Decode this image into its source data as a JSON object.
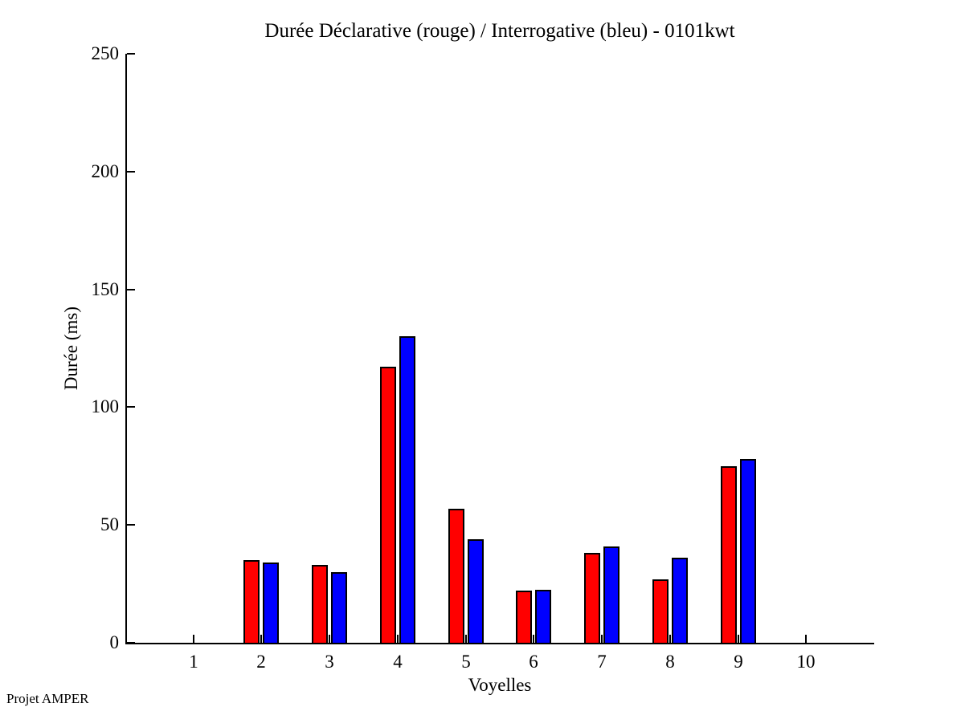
{
  "title": "Durée Déclarative (rouge) / Interrogative (bleu) - 0101kwt",
  "watermark": "Projet AMPER",
  "colors": {
    "background": "#ffffff",
    "axis": "#000000",
    "declarative": "#ff0000",
    "interrogative": "#0000ff",
    "bar_border": "#000000"
  },
  "chart_data": {
    "type": "bar",
    "title": "Durée Déclarative (rouge) / Interrogative (bleu) - 0101kwt",
    "xlabel": "Voyelles",
    "ylabel": "Durée (ms)",
    "categories": [
      1,
      2,
      3,
      4,
      5,
      6,
      7,
      8,
      9,
      10
    ],
    "series": [
      {
        "name": "Déclarative (rouge)",
        "color": "#ff0000",
        "values": [
          0,
          35,
          33,
          117,
          57,
          22,
          38,
          27,
          75,
          0
        ]
      },
      {
        "name": "Interrogative (bleu)",
        "color": "#0000ff",
        "values": [
          0,
          34,
          30,
          130,
          44,
          22.5,
          41,
          36,
          78,
          0
        ]
      }
    ],
    "ylim": [
      0,
      250
    ],
    "xlim": [
      0,
      11
    ],
    "yticks": [
      0,
      50,
      100,
      150,
      200,
      250
    ],
    "grid": false,
    "legend": false,
    "axes_shown": [
      "left",
      "bottom"
    ],
    "tick_direction": "in"
  }
}
